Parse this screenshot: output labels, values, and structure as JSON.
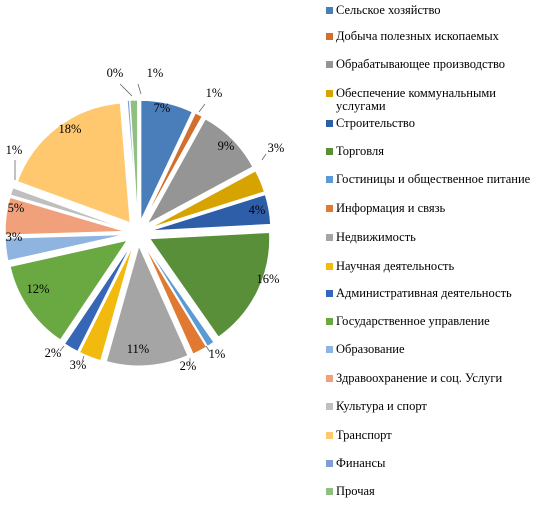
{
  "chart_data": {
    "type": "pie",
    "exploded": true,
    "start_angle_deg": 0,
    "direction": "clockwise",
    "legend_position": "right",
    "title": "",
    "slices": [
      {
        "label": "Сельское хозяйство",
        "value": 7,
        "data_label": "7%",
        "color": "#4a7ebb"
      },
      {
        "label": "Добыча полезных ископаемых",
        "value": 1,
        "data_label": "1%",
        "color": "#d26f2c"
      },
      {
        "label": "Обрабатывающее производство",
        "value": 9,
        "data_label": "9%",
        "color": "#959595"
      },
      {
        "label": "Обеспечение коммунальными услугами",
        "value": 3,
        "data_label": "3%",
        "color": "#d6a300"
      },
      {
        "label": "Строительство",
        "value": 4,
        "data_label": "4%",
        "color": "#2f5ea8"
      },
      {
        "label": "Торговля",
        "value": 16,
        "data_label": "16%",
        "color": "#5a8f3a"
      },
      {
        "label": "Гостиницы и общественное питание",
        "value": 1,
        "data_label": "1%",
        "color": "#5b9bd5"
      },
      {
        "label": "Информация и связь",
        "value": 2,
        "data_label": "2%",
        "color": "#e07a33"
      },
      {
        "label": "Недвижимость",
        "value": 11,
        "data_label": "11%",
        "color": "#a5a5a5"
      },
      {
        "label": "Научная деятельность",
        "value": 3,
        "data_label": "3%",
        "color": "#f2b90f"
      },
      {
        "label": "Административная  деятельность",
        "value": 2,
        "data_label": "2%",
        "color": "#3766b6"
      },
      {
        "label": "Государственное управление",
        "value": 12,
        "data_label": "12%",
        "color": "#6aa842"
      },
      {
        "label": "Образование",
        "value": 3,
        "data_label": "3%",
        "color": "#8fb4e0"
      },
      {
        "label": "Здравоохранение и соц. Услуги",
        "value": 5,
        "data_label": "5%",
        "color": "#f0a07a"
      },
      {
        "label": "Культура  и спорт",
        "value": 1,
        "data_label": "1%",
        "color": "#bfbfbf"
      },
      {
        "label": "Транспорт",
        "value": 18,
        "data_label": "18%",
        "color": "#ffc86e"
      },
      {
        "label": "Финансы",
        "value": 0.3,
        "data_label": "0%",
        "color": "#7f9fd4"
      },
      {
        "label": "Прочая",
        "value": 1,
        "data_label": "1%",
        "color": "#8fc080"
      }
    ]
  }
}
